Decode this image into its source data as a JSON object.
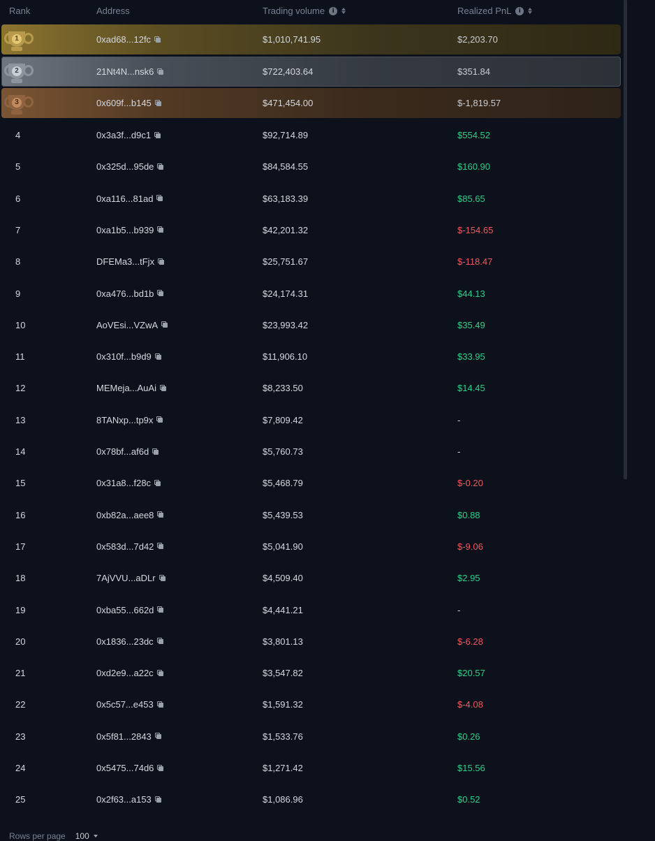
{
  "header": {
    "rank": "Rank",
    "address": "Address",
    "volume": "Trading volume",
    "pnl": "Realized PnL"
  },
  "rows": [
    {
      "rank": "1",
      "address": "0xad68...12fc",
      "volume": "$1,010,741.95",
      "pnl": "$2,203.70",
      "trend": "top"
    },
    {
      "rank": "2",
      "address": "21Nt4N...nsk6",
      "volume": "$722,403.64",
      "pnl": "$351.84",
      "trend": "top"
    },
    {
      "rank": "3",
      "address": "0x609f...b145",
      "volume": "$471,454.00",
      "pnl": "$-1,819.57",
      "trend": "top"
    },
    {
      "rank": "4",
      "address": "0x3a3f...d9c1",
      "volume": "$92,714.89",
      "pnl": "$554.52",
      "trend": "pos"
    },
    {
      "rank": "5",
      "address": "0x325d...95de",
      "volume": "$84,584.55",
      "pnl": "$160.90",
      "trend": "pos"
    },
    {
      "rank": "6",
      "address": "0xa116...81ad",
      "volume": "$63,183.39",
      "pnl": "$85.65",
      "trend": "pos"
    },
    {
      "rank": "7",
      "address": "0xa1b5...b939",
      "volume": "$42,201.32",
      "pnl": "$-154.65",
      "trend": "neg"
    },
    {
      "rank": "8",
      "address": "DFEMa3...tFjx",
      "volume": "$25,751.67",
      "pnl": "$-118.47",
      "trend": "neg"
    },
    {
      "rank": "9",
      "address": "0xa476...bd1b",
      "volume": "$24,174.31",
      "pnl": "$44.13",
      "trend": "pos"
    },
    {
      "rank": "10",
      "address": "AoVEsi...VZwA",
      "volume": "$23,993.42",
      "pnl": "$35.49",
      "trend": "pos"
    },
    {
      "rank": "11",
      "address": "0x310f...b9d9",
      "volume": "$11,906.10",
      "pnl": "$33.95",
      "trend": "pos"
    },
    {
      "rank": "12",
      "address": "MEMeja...AuAi",
      "volume": "$8,233.50",
      "pnl": "$14.45",
      "trend": "pos"
    },
    {
      "rank": "13",
      "address": "8TANxp...tp9x",
      "volume": "$7,809.42",
      "pnl": "-",
      "trend": "none"
    },
    {
      "rank": "14",
      "address": "0x78bf...af6d",
      "volume": "$5,760.73",
      "pnl": "-",
      "trend": "none"
    },
    {
      "rank": "15",
      "address": "0x31a8...f28c",
      "volume": "$5,468.79",
      "pnl": "$-0.20",
      "trend": "neg"
    },
    {
      "rank": "16",
      "address": "0xb82a...aee8",
      "volume": "$5,439.53",
      "pnl": "$0.88",
      "trend": "pos"
    },
    {
      "rank": "17",
      "address": "0x583d...7d42",
      "volume": "$5,041.90",
      "pnl": "$-9.06",
      "trend": "neg"
    },
    {
      "rank": "18",
      "address": "7AjVVU...aDLr",
      "volume": "$4,509.40",
      "pnl": "$2.95",
      "trend": "pos"
    },
    {
      "rank": "19",
      "address": "0xba55...662d",
      "volume": "$4,441.21",
      "pnl": "-",
      "trend": "none"
    },
    {
      "rank": "20",
      "address": "0x1836...23dc",
      "volume": "$3,801.13",
      "pnl": "$-6.28",
      "trend": "neg"
    },
    {
      "rank": "21",
      "address": "0xd2e9...a22c",
      "volume": "$3,547.82",
      "pnl": "$20.57",
      "trend": "pos"
    },
    {
      "rank": "22",
      "address": "0x5c57...e453",
      "volume": "$1,591.32",
      "pnl": "$-4.08",
      "trend": "neg"
    },
    {
      "rank": "23",
      "address": "0x5f81...2843",
      "volume": "$1,533.76",
      "pnl": "$0.26",
      "trend": "pos"
    },
    {
      "rank": "24",
      "address": "0x5475...74d6",
      "volume": "$1,271.42",
      "pnl": "$15.56",
      "trend": "pos"
    },
    {
      "rank": "25",
      "address": "0x2f63...a153",
      "volume": "$1,086.96",
      "pnl": "$0.52",
      "trend": "pos"
    }
  ],
  "trophies": {
    "first": {
      "icon": "gold-trophy-icon",
      "number": "1"
    },
    "second": {
      "icon": "silver-trophy-icon",
      "number": "2"
    },
    "third": {
      "icon": "bronze-trophy-icon",
      "number": "3"
    }
  },
  "footer": {
    "rows_per_page_label": "Rows per page",
    "rows_per_page_value": "100"
  },
  "colors": {
    "positive": "#2fcf8b",
    "negative": "#ee5a5f",
    "background": "#0c111b"
  }
}
